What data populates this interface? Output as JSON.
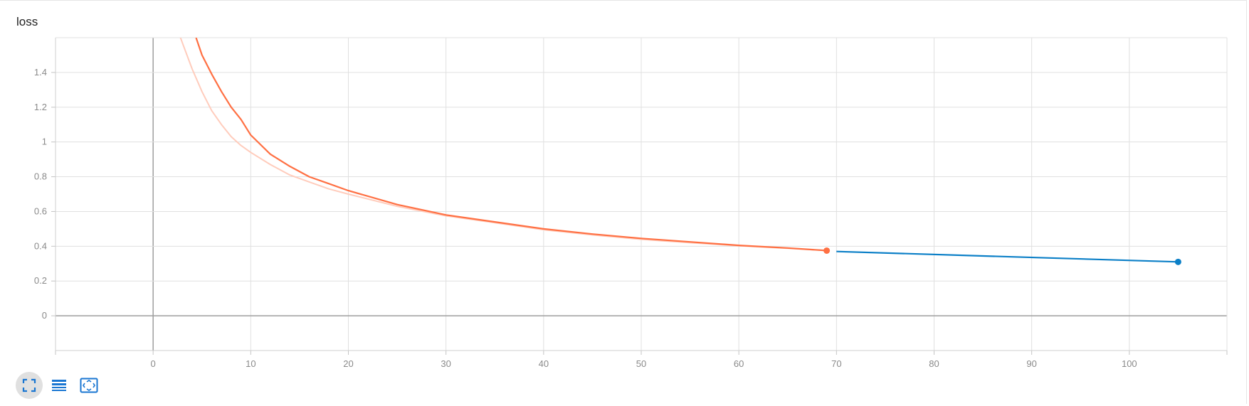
{
  "card": {
    "title": "loss"
  },
  "toolbar": {
    "icons": [
      "expand-icon",
      "data-table-icon",
      "fit-domain-icon"
    ],
    "accent_color": "#1976d2"
  },
  "chart_data": {
    "type": "line",
    "title": "loss",
    "xlabel": "",
    "ylabel": "",
    "xlim": [
      -10,
      110
    ],
    "ylim": [
      -0.2,
      1.6
    ],
    "x_ticks": [
      0,
      10,
      20,
      30,
      40,
      50,
      60,
      70,
      80,
      90,
      100
    ],
    "y_ticks": [
      0,
      0.2,
      0.4,
      0.6,
      0.8,
      1,
      1.2,
      1.4
    ],
    "grid": true,
    "series": [
      {
        "color": "#ff7043",
        "smoothed": true,
        "raw_color": "#ffccbc",
        "x": [
          4.4,
          5,
          6,
          7,
          8,
          9,
          10,
          12,
          14,
          16,
          18,
          20,
          25,
          30,
          35,
          40,
          45,
          50,
          55,
          60,
          65,
          69
        ],
        "values": [
          1.6,
          1.5,
          1.39,
          1.29,
          1.2,
          1.13,
          1.04,
          0.93,
          0.86,
          0.8,
          0.76,
          0.72,
          0.64,
          0.58,
          0.54,
          0.5,
          0.47,
          0.445,
          0.425,
          0.405,
          0.39,
          0.375
        ],
        "raw_x": [
          2.8,
          3,
          4,
          5,
          6,
          7,
          8,
          9,
          10,
          12,
          14,
          16,
          18,
          20,
          25,
          30,
          35,
          40,
          45,
          50,
          55,
          60,
          65,
          69
        ],
        "raw_values": [
          1.6,
          1.57,
          1.42,
          1.29,
          1.18,
          1.1,
          1.03,
          0.98,
          0.94,
          0.87,
          0.81,
          0.77,
          0.73,
          0.7,
          0.63,
          0.575,
          0.535,
          0.495,
          0.465,
          0.44,
          0.42,
          0.403,
          0.388,
          0.375
        ]
      },
      {
        "color": "#0b7fc7",
        "smoothed": false,
        "x": [
          70,
          105
        ],
        "values": [
          0.37,
          0.31
        ]
      }
    ]
  }
}
